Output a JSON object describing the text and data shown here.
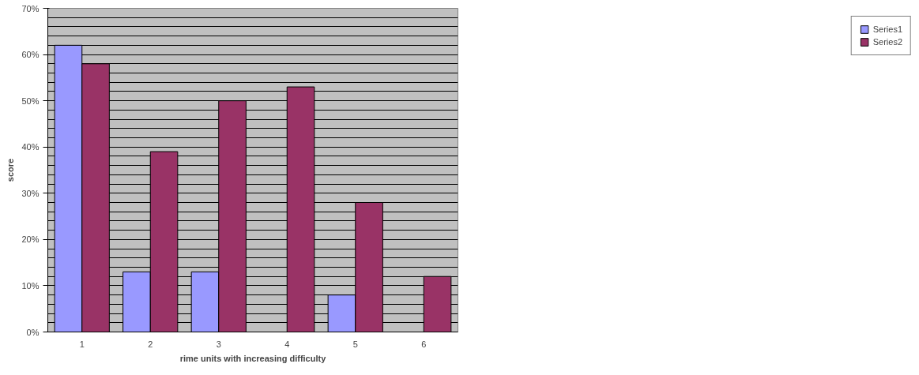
{
  "chart_data": {
    "type": "bar",
    "xlabel": "rime units with increasing difficulty",
    "ylabel": "score",
    "categories": [
      "1",
      "2",
      "3",
      "4",
      "5",
      "6"
    ],
    "series": [
      {
        "name": "Series1",
        "color": "#9999ff",
        "values": [
          62,
          13,
          13,
          null,
          8,
          null
        ]
      },
      {
        "name": "Series2",
        "color": "#993366",
        "values": [
          58,
          39,
          50,
          53,
          28,
          12
        ]
      }
    ],
    "ylim": [
      0,
      70
    ],
    "yticks": [
      {
        "value": 0,
        "label": "0%"
      },
      {
        "value": 10,
        "label": "10%"
      },
      {
        "value": 20,
        "label": "20%"
      },
      {
        "value": 30,
        "label": "30%"
      },
      {
        "value": 40,
        "label": "40%"
      },
      {
        "value": 50,
        "label": "50%"
      },
      {
        "value": 60,
        "label": "60%"
      },
      {
        "value": 70,
        "label": "70%"
      }
    ],
    "grid": "y",
    "legend": "right"
  }
}
